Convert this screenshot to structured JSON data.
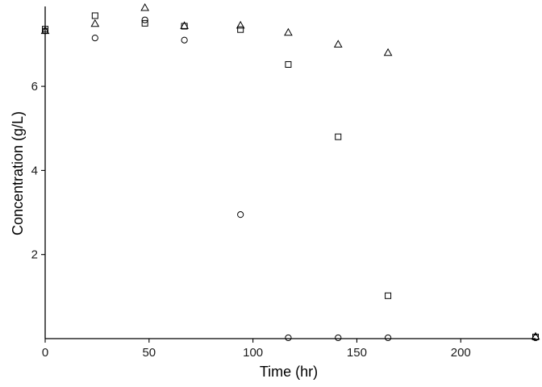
{
  "chart_data": {
    "type": "scatter",
    "title": "",
    "xlabel": "Time (hr)",
    "ylabel": "Concentration (g/L)",
    "xlim": [
      0,
      236
    ],
    "ylim": [
      0,
      7.9
    ],
    "x_ticks": [
      0,
      50,
      100,
      150,
      200
    ],
    "y_ticks": [
      2,
      4,
      6
    ],
    "grid": false,
    "legend": "none",
    "series": [
      {
        "marker": "circle",
        "points": [
          {
            "x": 0,
            "y": 7.32
          },
          {
            "x": 24,
            "y": 7.15
          },
          {
            "x": 48,
            "y": 7.58
          },
          {
            "x": 67,
            "y": 7.1
          },
          {
            "x": 94,
            "y": 2.95
          },
          {
            "x": 117,
            "y": 0.02
          },
          {
            "x": 141,
            "y": 0.02
          },
          {
            "x": 165,
            "y": 0.02
          },
          {
            "x": 236,
            "y": 0.02
          }
        ]
      },
      {
        "marker": "square",
        "points": [
          {
            "x": 0,
            "y": 7.36
          },
          {
            "x": 24,
            "y": 7.68
          },
          {
            "x": 48,
            "y": 7.5
          },
          {
            "x": 67,
            "y": 7.43
          },
          {
            "x": 94,
            "y": 7.35
          },
          {
            "x": 117,
            "y": 6.52
          },
          {
            "x": 141,
            "y": 4.8
          },
          {
            "x": 165,
            "y": 1.02
          },
          {
            "x": 236,
            "y": 0.04
          }
        ]
      },
      {
        "marker": "triangle",
        "points": [
          {
            "x": 0,
            "y": 7.32
          },
          {
            "x": 24,
            "y": 7.49
          },
          {
            "x": 48,
            "y": 7.87
          },
          {
            "x": 67,
            "y": 7.44
          },
          {
            "x": 94,
            "y": 7.45
          },
          {
            "x": 117,
            "y": 7.28
          },
          {
            "x": 141,
            "y": 7.0
          },
          {
            "x": 165,
            "y": 6.8
          },
          {
            "x": 236,
            "y": 0.05
          }
        ]
      }
    ]
  },
  "colors": {
    "axis": "#000000",
    "marker_stroke": "#000000",
    "background": "#ffffff"
  }
}
